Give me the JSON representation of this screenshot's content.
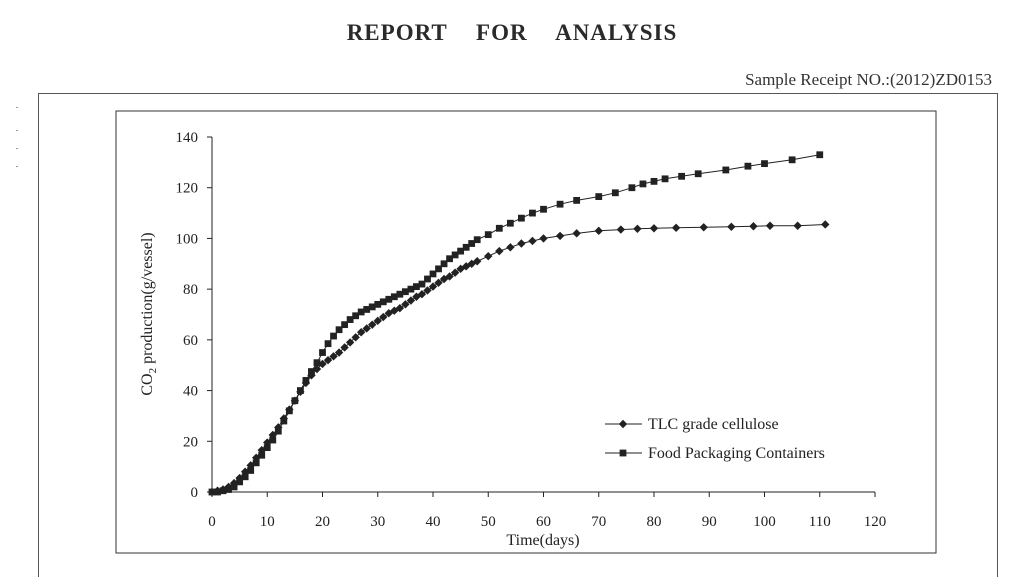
{
  "header": {
    "title": "REPORT FOR ANALYSIS",
    "sample_receipt": "Sample Receipt NO.:(2012)ZD0153"
  },
  "colors": {
    "ink": "#222222",
    "frame": "#555555"
  },
  "chart_data": {
    "type": "line",
    "title": "",
    "xlabel": "Time(days)",
    "ylabel": "CO2 production(g/vessel)",
    "xlim": [
      0,
      120
    ],
    "ylim": [
      0,
      140
    ],
    "xticks": [
      0,
      10,
      20,
      30,
      40,
      50,
      60,
      70,
      80,
      90,
      100,
      110,
      120
    ],
    "yticks": [
      0,
      20,
      40,
      60,
      80,
      100,
      120,
      140
    ],
    "grid": false,
    "legend_position": "lower-right",
    "series": [
      {
        "name": "TLC grade cellulose",
        "marker": "diamond",
        "x": [
          0,
          1,
          2,
          3,
          4,
          5,
          6,
          7,
          8,
          9,
          10,
          11,
          12,
          13,
          14,
          15,
          16,
          17,
          18,
          19,
          20,
          21,
          22,
          23,
          24,
          25,
          26,
          27,
          28,
          29,
          30,
          31,
          32,
          33,
          34,
          35,
          36,
          37,
          38,
          39,
          40,
          41,
          42,
          43,
          44,
          45,
          46,
          47,
          48,
          50,
          52,
          54,
          56,
          58,
          60,
          63,
          66,
          70,
          74,
          77,
          80,
          84,
          89,
          94,
          98,
          101,
          106,
          111
        ],
        "values": [
          0,
          0.5,
          1,
          2,
          3.5,
          5.5,
          8,
          10.5,
          13.5,
          16.5,
          19.5,
          22.5,
          25.5,
          29,
          32.5,
          36,
          39.5,
          43,
          46,
          48.5,
          50.5,
          52,
          53.5,
          55,
          57,
          59,
          61,
          63,
          64.5,
          66,
          67.5,
          69,
          70.5,
          71.5,
          72.5,
          74,
          75.5,
          77,
          78,
          79.5,
          81,
          82.5,
          84,
          85,
          86.5,
          88,
          89,
          90,
          91,
          93,
          95,
          96.5,
          98,
          99,
          100,
          101,
          102,
          103,
          103.5,
          103.8,
          104,
          104.2,
          104.4,
          104.6,
          104.8,
          105,
          105,
          105.5
        ]
      },
      {
        "name": "Food Packaging Containers",
        "marker": "square",
        "x": [
          0,
          1,
          2,
          3,
          4,
          5,
          6,
          7,
          8,
          9,
          10,
          11,
          12,
          13,
          14,
          15,
          16,
          17,
          18,
          19,
          20,
          21,
          22,
          23,
          24,
          25,
          26,
          27,
          28,
          29,
          30,
          31,
          32,
          33,
          34,
          35,
          36,
          37,
          38,
          39,
          40,
          41,
          42,
          43,
          44,
          45,
          46,
          47,
          48,
          50,
          52,
          54,
          56,
          58,
          60,
          63,
          66,
          70,
          73,
          76,
          78,
          80,
          82,
          85,
          88,
          93,
          97,
          100,
          105,
          110
        ],
        "values": [
          0,
          0,
          0.5,
          1,
          2,
          4,
          6,
          8.5,
          11.5,
          14.5,
          17.5,
          20.5,
          24,
          28,
          32,
          36,
          40,
          44,
          47.5,
          51,
          55,
          58.5,
          61.5,
          64,
          66,
          68,
          69.5,
          71,
          72,
          73,
          74,
          75,
          76,
          77,
          78,
          79,
          80,
          81,
          82,
          84,
          86,
          88,
          90,
          92,
          93.5,
          95,
          96.5,
          98,
          99.5,
          101.5,
          104,
          106,
          108,
          110,
          111.5,
          113.5,
          115,
          116.5,
          118,
          120,
          121.5,
          122.5,
          123.5,
          124.5,
          125.5,
          127,
          128.5,
          129.5,
          131,
          133
        ]
      }
    ]
  }
}
